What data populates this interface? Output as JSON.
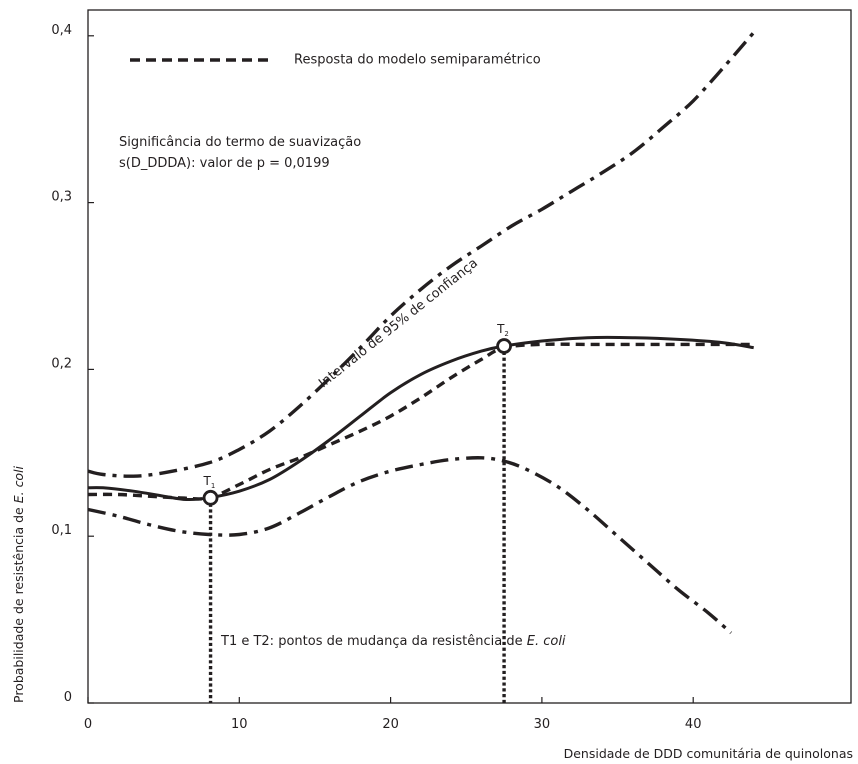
{
  "chart_data": {
    "type": "line",
    "title": "",
    "xlabel": "Densidade de DDD comunitária de quinolonas",
    "ylabel": "Probabilidade de resistência de E. coli",
    "xlim": [
      0,
      45
    ],
    "ylim": [
      0,
      0.4
    ],
    "grid": false,
    "x_ticks": [
      0,
      10,
      20,
      30,
      40
    ],
    "x_tick_labels": [
      "0",
      "10",
      "20",
      "30",
      "40"
    ],
    "y_ticks": [
      0,
      0.1,
      0.2,
      0.3,
      0.4
    ],
    "y_tick_labels": [
      "0",
      "0,1",
      "0,2",
      "0,3",
      "0,4"
    ],
    "legend_placement": "top-left",
    "legend_text": "Resposta do modelo semiparamétrico",
    "significance_line1": "Significância do termo de suavização",
    "significance_line2": "s(D_DDDA): valor de p = 0,0199",
    "ci_label": "Intervalo de 95% de confiança",
    "changepoints_note_prefix": "T1 e T2: pontos de mudança da resistência de ",
    "changepoints_note_italic": "E. coli",
    "series": [
      {
        "style": "solid",
        "x": [
          0,
          1,
          3,
          5,
          6.5,
          8,
          10,
          12,
          14,
          16,
          18,
          20,
          22,
          24,
          26,
          27.5,
          30,
          33,
          36,
          39,
          42,
          44
        ],
        "y": [
          0.129,
          0.129,
          0.127,
          0.124,
          0.122,
          0.123,
          0.127,
          0.134,
          0.145,
          0.158,
          0.172,
          0.186,
          0.197,
          0.205,
          0.211,
          0.214,
          0.217,
          0.219,
          0.219,
          0.218,
          0.216,
          0.213
        ]
      },
      {
        "name": "Resposta do modelo semiparamétrico",
        "style": "dashed",
        "x": [
          0,
          2,
          4,
          6,
          8,
          10,
          12,
          14,
          16,
          18,
          20,
          22,
          24,
          26,
          27.5,
          30,
          33,
          36,
          39,
          42,
          44
        ],
        "y": [
          0.125,
          0.125,
          0.124,
          0.123,
          0.123,
          0.131,
          0.14,
          0.147,
          0.155,
          0.163,
          0.172,
          0.183,
          0.195,
          0.206,
          0.213,
          0.215,
          0.215,
          0.215,
          0.215,
          0.215,
          0.215
        ]
      },
      {
        "style": "dashdot",
        "x": [
          0,
          1,
          3,
          5,
          8,
          10,
          12,
          14,
          16,
          18,
          20,
          22,
          24,
          26,
          28,
          30,
          32,
          34,
          36,
          38,
          40,
          42,
          44
        ],
        "y": [
          0.139,
          0.137,
          0.136,
          0.138,
          0.144,
          0.152,
          0.163,
          0.178,
          0.195,
          0.213,
          0.232,
          0.248,
          0.262,
          0.274,
          0.286,
          0.296,
          0.307,
          0.318,
          0.33,
          0.345,
          0.361,
          0.381,
          0.402
        ]
      },
      {
        "style": "dashdot",
        "x": [
          0,
          2,
          4,
          6,
          8,
          10,
          12,
          14,
          16,
          18,
          20,
          22,
          24,
          26,
          27.5,
          29,
          31,
          33,
          35,
          37,
          39,
          41,
          42.5
        ],
        "y": [
          0.116,
          0.112,
          0.107,
          0.103,
          0.101,
          0.101,
          0.105,
          0.114,
          0.124,
          0.133,
          0.139,
          0.143,
          0.146,
          0.147,
          0.145,
          0.14,
          0.13,
          0.116,
          0.1,
          0.084,
          0.068,
          0.054,
          0.042
        ]
      }
    ],
    "change_points": [
      {
        "label": "T",
        "sub": "1",
        "x": 8.1,
        "y": 0.123
      },
      {
        "label": "T",
        "sub": "2",
        "x": 27.5,
        "y": 0.214
      }
    ]
  }
}
